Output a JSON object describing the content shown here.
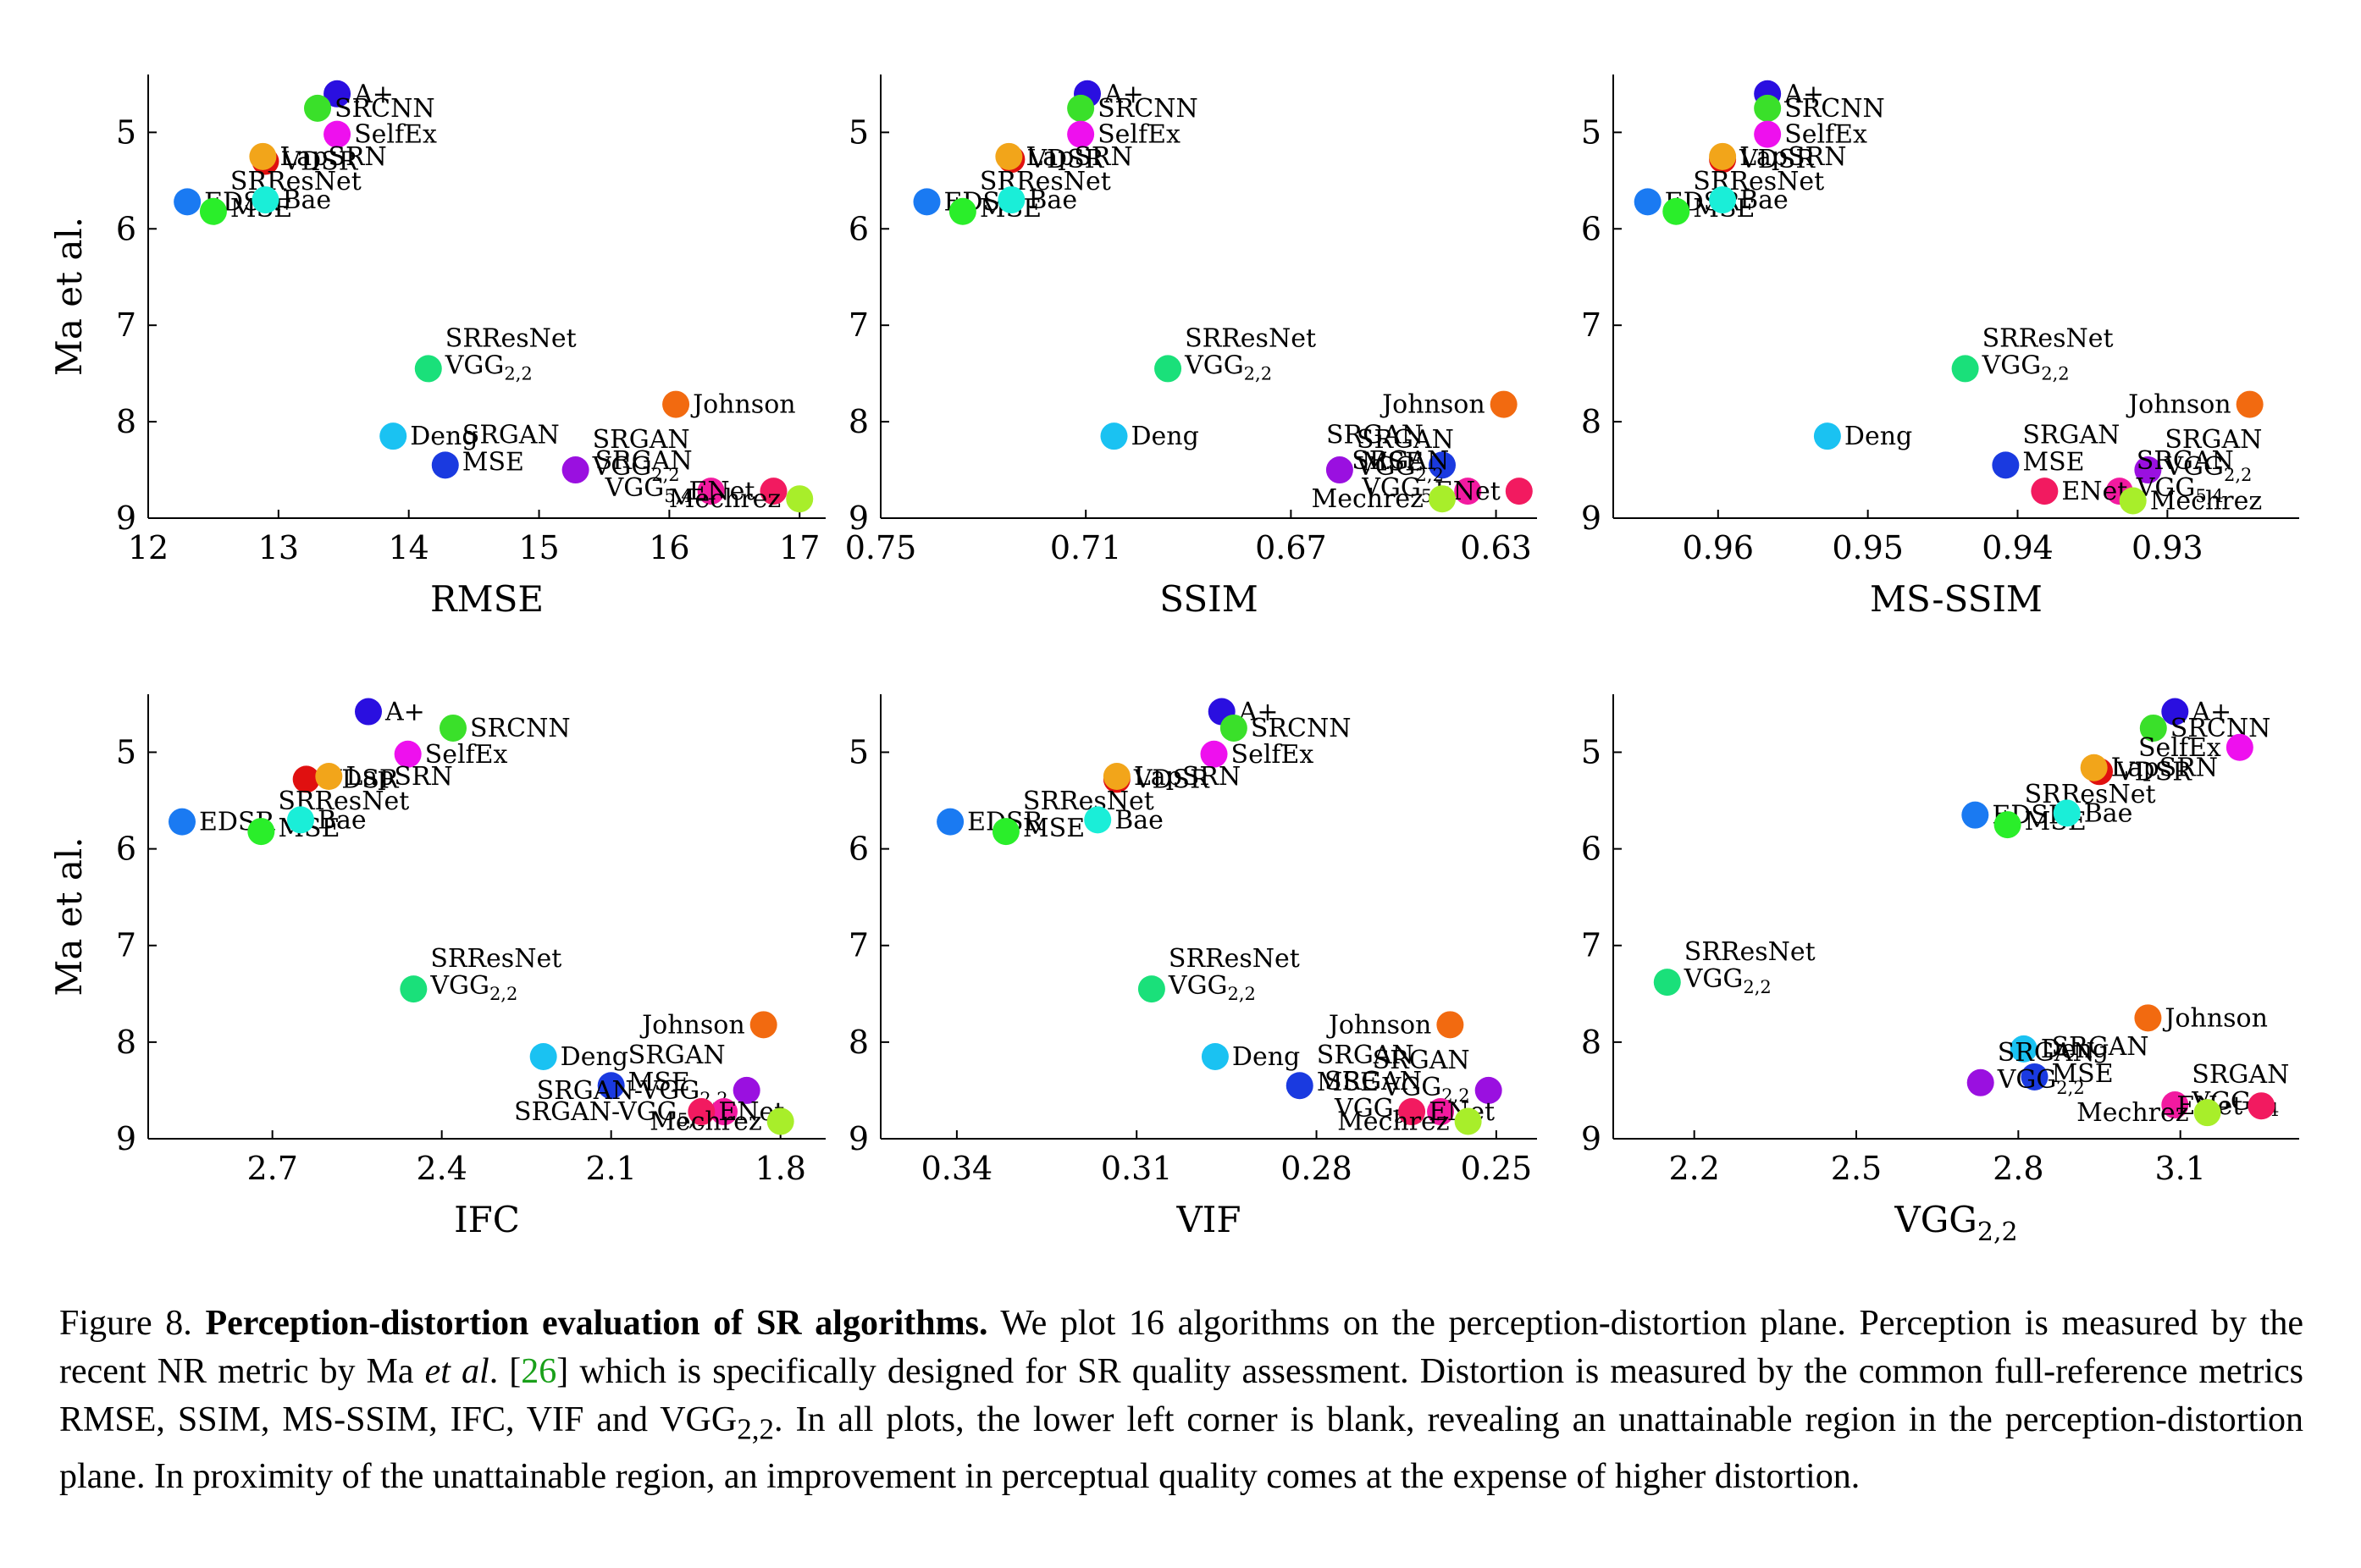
{
  "caption": {
    "prefix": "Figure 8.",
    "title": "Perception-distortion evaluation of SR algorithms.",
    "body1": " We plot 16 algorithms on the perception-distortion plane. Perception is measured by the recent NR metric by Ma ",
    "etal": "et al",
    "body2": ". [",
    "ref": "26",
    "body3": "] which is specifically designed for SR quality assessment. Distortion is measured by the common full-reference metrics RMSE, SSIM, MS-SSIM, IFC, VIF and VGG",
    "sub": "2,2",
    "body4": ". In all plots, the lower left corner is blank, revealing an unattainable region in the perception-distortion plane. In proximity of the unattainable region, an improvement in perceptual quality comes at the expense of higher distortion."
  },
  "chart_data": [
    {
      "type": "scatter",
      "xlabel": "RMSE",
      "ylabel": "Ma et al.",
      "xlim": [
        12,
        17.2
      ],
      "ylim": [
        9,
        4.4
      ],
      "x_reversed": false,
      "xticks": [
        12,
        13,
        14,
        15,
        16,
        17
      ],
      "yticks": [
        5,
        6,
        7,
        8,
        9
      ],
      "points": [
        {
          "label": "A+",
          "x": 13.45,
          "y": 4.6,
          "color": "#2a0fe0"
        },
        {
          "label": "SRCNN",
          "x": 13.3,
          "y": 4.75,
          "color": "#3ae02a"
        },
        {
          "label": "SelfEx",
          "x": 13.45,
          "y": 5.02,
          "color": "#ee10ee"
        },
        {
          "label": "VDSR",
          "x": 12.9,
          "y": 5.3,
          "color": "#e01010"
        },
        {
          "label": "LapSRN",
          "x": 12.88,
          "y": 5.25,
          "color": "#f2a51a"
        },
        {
          "label": "EDSR",
          "x": 12.3,
          "y": 5.72,
          "color": "#1a7af2"
        },
        {
          "label": "SRResNet MSE",
          "x": 12.5,
          "y": 5.82,
          "color": "#2aee2a"
        },
        {
          "label": "Bae",
          "x": 12.9,
          "y": 5.7,
          "color": "#1aeed8"
        },
        {
          "label": "SRResNet VGG2,2",
          "x": 14.15,
          "y": 7.45,
          "color": "#1ae07a"
        },
        {
          "label": "Deng",
          "x": 13.88,
          "y": 8.15,
          "color": "#1ac2f2"
        },
        {
          "label": "SRGAN MSE",
          "x": 14.28,
          "y": 8.45,
          "color": "#1a3ae0"
        },
        {
          "label": "SRGAN VGG2,2",
          "x": 15.28,
          "y": 8.5,
          "color": "#9a10e0"
        },
        {
          "label": "Johnson",
          "x": 16.05,
          "y": 7.82,
          "color": "#f26a10"
        },
        {
          "label": "SRGAN VGG5,4",
          "x": 16.32,
          "y": 8.72,
          "color": "#f21aa0"
        },
        {
          "label": "ENet",
          "x": 16.8,
          "y": 8.72,
          "color": "#f21a60"
        },
        {
          "label": "Mechrez",
          "x": 17.0,
          "y": 8.8,
          "color": "#a8ee2a"
        }
      ]
    },
    {
      "type": "scatter",
      "xlabel": "SSIM",
      "ylabel": "",
      "xlim": [
        0.75,
        0.622
      ],
      "ylim": [
        9,
        4.4
      ],
      "x_reversed": true,
      "xticks": [
        0.75,
        0.71,
        0.67,
        0.63
      ],
      "yticks": [
        5,
        6,
        7,
        8,
        9
      ],
      "points": [
        {
          "label": "A+",
          "x": 0.7097,
          "y": 4.6,
          "color": "#2a0fe0"
        },
        {
          "label": "SRCNN",
          "x": 0.711,
          "y": 4.75,
          "color": "#3ae02a"
        },
        {
          "label": "SelfEx",
          "x": 0.711,
          "y": 5.02,
          "color": "#ee10ee"
        },
        {
          "label": "VDSR",
          "x": 0.7245,
          "y": 5.28,
          "color": "#e01010"
        },
        {
          "label": "LapSRN",
          "x": 0.725,
          "y": 5.25,
          "color": "#f2a51a"
        },
        {
          "label": "EDSR",
          "x": 0.741,
          "y": 5.72,
          "color": "#1a7af2"
        },
        {
          "label": "SRResNet MSE",
          "x": 0.734,
          "y": 5.82,
          "color": "#2aee2a"
        },
        {
          "label": "Bae",
          "x": 0.7245,
          "y": 5.7,
          "color": "#1aeed8"
        },
        {
          "label": "SRResNet VGG2,2",
          "x": 0.694,
          "y": 7.45,
          "color": "#1ae07a"
        },
        {
          "label": "Deng",
          "x": 0.7045,
          "y": 8.15,
          "color": "#1ac2f2"
        },
        {
          "label": "SRGAN MSE",
          "x": 0.6405,
          "y": 8.45,
          "color": "#1a3ae0"
        },
        {
          "label": "SRGAN VGG2,2",
          "x": 0.6605,
          "y": 8.5,
          "color": "#9a10e0"
        },
        {
          "label": "Johnson",
          "x": 0.6285,
          "y": 7.82,
          "color": "#f26a10"
        },
        {
          "label": "SRGAN VGG5,4",
          "x": 0.6355,
          "y": 8.72,
          "color": "#f21aa0"
        },
        {
          "label": "ENet",
          "x": 0.6255,
          "y": 8.72,
          "color": "#f21a60"
        },
        {
          "label": "Mechrez",
          "x": 0.6405,
          "y": 8.8,
          "color": "#a8ee2a"
        }
      ]
    },
    {
      "type": "scatter",
      "xlabel": "MS-SSIM",
      "ylabel": "",
      "xlim": [
        0.967,
        0.9212
      ],
      "ylim": [
        9,
        4.4
      ],
      "x_reversed": true,
      "xticks": [
        0.96,
        0.95,
        0.94,
        0.93
      ],
      "yticks": [
        5,
        6,
        7,
        8,
        9
      ],
      "points": [
        {
          "label": "A+",
          "x": 0.9567,
          "y": 4.6,
          "color": "#2a0fe0"
        },
        {
          "label": "SRCNN",
          "x": 0.9567,
          "y": 4.75,
          "color": "#3ae02a"
        },
        {
          "label": "SelfEx",
          "x": 0.9567,
          "y": 5.02,
          "color": "#ee10ee"
        },
        {
          "label": "VDSR",
          "x": 0.9597,
          "y": 5.28,
          "color": "#e01010"
        },
        {
          "label": "LapSRN",
          "x": 0.9597,
          "y": 5.25,
          "color": "#f2a51a"
        },
        {
          "label": "EDSR",
          "x": 0.9647,
          "y": 5.72,
          "color": "#1a7af2"
        },
        {
          "label": "SRResNet MSE",
          "x": 0.9628,
          "y": 5.82,
          "color": "#2aee2a"
        },
        {
          "label": "Bae",
          "x": 0.9597,
          "y": 5.7,
          "color": "#1aeed8"
        },
        {
          "label": "SRResNet VGG2,2",
          "x": 0.9435,
          "y": 7.45,
          "color": "#1ae07a"
        },
        {
          "label": "Deng",
          "x": 0.9527,
          "y": 8.15,
          "color": "#1ac2f2"
        },
        {
          "label": "SRGAN MSE",
          "x": 0.9408,
          "y": 8.45,
          "color": "#1a3ae0"
        },
        {
          "label": "SRGAN VGG2,2",
          "x": 0.9313,
          "y": 8.5,
          "color": "#9a10e0"
        },
        {
          "label": "Johnson",
          "x": 0.9245,
          "y": 7.82,
          "color": "#f26a10"
        },
        {
          "label": "SRGAN VGG5,4",
          "x": 0.9332,
          "y": 8.72,
          "color": "#f21aa0"
        },
        {
          "label": "ENet",
          "x": 0.9382,
          "y": 8.72,
          "color": "#f21a60"
        },
        {
          "label": "Mechrez",
          "x": 0.9323,
          "y": 8.82,
          "color": "#a8ee2a"
        }
      ]
    },
    {
      "type": "scatter",
      "xlabel": "IFC",
      "ylabel": "Ma et al.",
      "xlim": [
        2.92,
        1.72
      ],
      "ylim": [
        9,
        4.4
      ],
      "x_reversed": true,
      "xticks": [
        2.7,
        2.4,
        2.1,
        1.8
      ],
      "yticks": [
        5,
        6,
        7,
        8,
        9
      ],
      "points": [
        {
          "label": "A+",
          "x": 2.53,
          "y": 4.58,
          "color": "#2a0fe0"
        },
        {
          "label": "SRCNN",
          "x": 2.38,
          "y": 4.75,
          "color": "#3ae02a"
        },
        {
          "label": "SelfEx",
          "x": 2.46,
          "y": 5.02,
          "color": "#ee10ee"
        },
        {
          "label": "VDSR",
          "x": 2.64,
          "y": 5.28,
          "color": "#e01010"
        },
        {
          "label": "LapSRN",
          "x": 2.6,
          "y": 5.25,
          "color": "#f2a51a"
        },
        {
          "label": "EDSR",
          "x": 2.86,
          "y": 5.72,
          "color": "#1a7af2"
        },
        {
          "label": "SRResNet MSE",
          "x": 2.72,
          "y": 5.82,
          "color": "#2aee2a"
        },
        {
          "label": "Bae",
          "x": 2.65,
          "y": 5.7,
          "color": "#1aeed8"
        },
        {
          "label": "SRResNet VGG2,2",
          "x": 2.45,
          "y": 7.45,
          "color": "#1ae07a"
        },
        {
          "label": "Deng",
          "x": 2.22,
          "y": 8.15,
          "color": "#1ac2f2"
        },
        {
          "label": "SRGAN MSE",
          "x": 2.1,
          "y": 8.45,
          "color": "#1a3ae0"
        },
        {
          "label": "SRGAN-VGG2,2",
          "x": 1.86,
          "y": 8.5,
          "color": "#9a10e0"
        },
        {
          "label": "Johnson",
          "x": 1.83,
          "y": 7.82,
          "color": "#f26a10"
        },
        {
          "label": "SRGAN-VGG5,4",
          "x": 1.9,
          "y": 8.72,
          "color": "#f21aa0"
        },
        {
          "label": "ENet",
          "x": 1.94,
          "y": 8.72,
          "color": "#f21a60"
        },
        {
          "label": "Mechrez",
          "x": 1.8,
          "y": 8.82,
          "color": "#a8ee2a"
        }
      ]
    },
    {
      "type": "scatter",
      "xlabel": "VIF",
      "ylabel": "",
      "xlim": [
        0.3527,
        0.2432
      ],
      "ylim": [
        9,
        4.4
      ],
      "x_reversed": true,
      "xticks": [
        0.34,
        0.31,
        0.28,
        0.25
      ],
      "yticks": [
        5,
        6,
        7,
        8,
        9
      ],
      "points": [
        {
          "label": "A+",
          "x": 0.2958,
          "y": 4.58,
          "color": "#2a0fe0"
        },
        {
          "label": "SRCNN",
          "x": 0.2938,
          "y": 4.75,
          "color": "#3ae02a"
        },
        {
          "label": "SelfEx",
          "x": 0.2971,
          "y": 5.02,
          "color": "#ee10ee"
        },
        {
          "label": "VDSR",
          "x": 0.3133,
          "y": 5.28,
          "color": "#e01010"
        },
        {
          "label": "LapSRN",
          "x": 0.3133,
          "y": 5.25,
          "color": "#f2a51a"
        },
        {
          "label": "EDSR",
          "x": 0.3411,
          "y": 5.72,
          "color": "#1a7af2"
        },
        {
          "label": "SRResNet MSE",
          "x": 0.3318,
          "y": 5.82,
          "color": "#2aee2a"
        },
        {
          "label": "Bae",
          "x": 0.3165,
          "y": 5.7,
          "color": "#1aeed8"
        },
        {
          "label": "SRResNet VGG2,2",
          "x": 0.3075,
          "y": 7.45,
          "color": "#1ae07a"
        },
        {
          "label": "Deng",
          "x": 0.2969,
          "y": 8.15,
          "color": "#1ac2f2"
        },
        {
          "label": "SRGAN MSE",
          "x": 0.2828,
          "y": 8.45,
          "color": "#1a3ae0"
        },
        {
          "label": "SRGAN VGG2,2",
          "x": 0.2513,
          "y": 8.5,
          "color": "#9a10e0"
        },
        {
          "label": "Johnson",
          "x": 0.2577,
          "y": 7.82,
          "color": "#f26a10"
        },
        {
          "label": "SRGAN VGG5,4",
          "x": 0.2593,
          "y": 8.72,
          "color": "#f21aa0"
        },
        {
          "label": "ENet",
          "x": 0.2641,
          "y": 8.72,
          "color": "#f21a60"
        },
        {
          "label": "Mechrez",
          "x": 0.2547,
          "y": 8.82,
          "color": "#a8ee2a"
        }
      ]
    },
    {
      "type": "scatter",
      "xlabel": "VGG",
      "xlabel_sub": "2,2",
      "ylabel": "",
      "xlim": [
        2.05,
        3.32
      ],
      "ylim": [
        9,
        4.4
      ],
      "x_reversed": false,
      "xticks": [
        2.2,
        2.5,
        2.8,
        3.1
      ],
      "yticks": [
        5,
        6,
        7,
        8,
        9
      ],
      "points": [
        {
          "label": "A+",
          "x": 3.09,
          "y": 4.58,
          "color": "#2a0fe0"
        },
        {
          "label": "SRCNN",
          "x": 3.05,
          "y": 4.75,
          "color": "#3ae02a"
        },
        {
          "label": "SelfEx",
          "x": 3.21,
          "y": 4.95,
          "color": "#ee10ee"
        },
        {
          "label": "VDSR",
          "x": 2.95,
          "y": 5.2,
          "color": "#e01010"
        },
        {
          "label": "LapSRN",
          "x": 2.94,
          "y": 5.16,
          "color": "#f2a51a"
        },
        {
          "label": "EDSR",
          "x": 2.72,
          "y": 5.65,
          "color": "#1a7af2"
        },
        {
          "label": "SRResNet MSE",
          "x": 2.78,
          "y": 5.75,
          "color": "#2aee2a"
        },
        {
          "label": "Bae",
          "x": 2.89,
          "y": 5.63,
          "color": "#1aeed8"
        },
        {
          "label": "SRResNet VGG2,2",
          "x": 2.15,
          "y": 7.38,
          "color": "#1ae07a"
        },
        {
          "label": "Deng",
          "x": 2.81,
          "y": 8.07,
          "color": "#1ac2f2"
        },
        {
          "label": "SRGAN MSE",
          "x": 2.83,
          "y": 8.36,
          "color": "#1a3ae0"
        },
        {
          "label": "SRGAN VGG2,2",
          "x": 2.73,
          "y": 8.42,
          "color": "#9a10e0"
        },
        {
          "label": "Johnson",
          "x": 3.04,
          "y": 7.75,
          "color": "#f26a10"
        },
        {
          "label": "SRGAN VGG5,4",
          "x": 3.09,
          "y": 8.65,
          "color": "#f21aa0"
        },
        {
          "label": "ENet",
          "x": 3.25,
          "y": 8.66,
          "color": "#f21a60"
        },
        {
          "label": "Mechrez",
          "x": 3.15,
          "y": 8.73,
          "color": "#a8ee2a"
        }
      ]
    }
  ]
}
